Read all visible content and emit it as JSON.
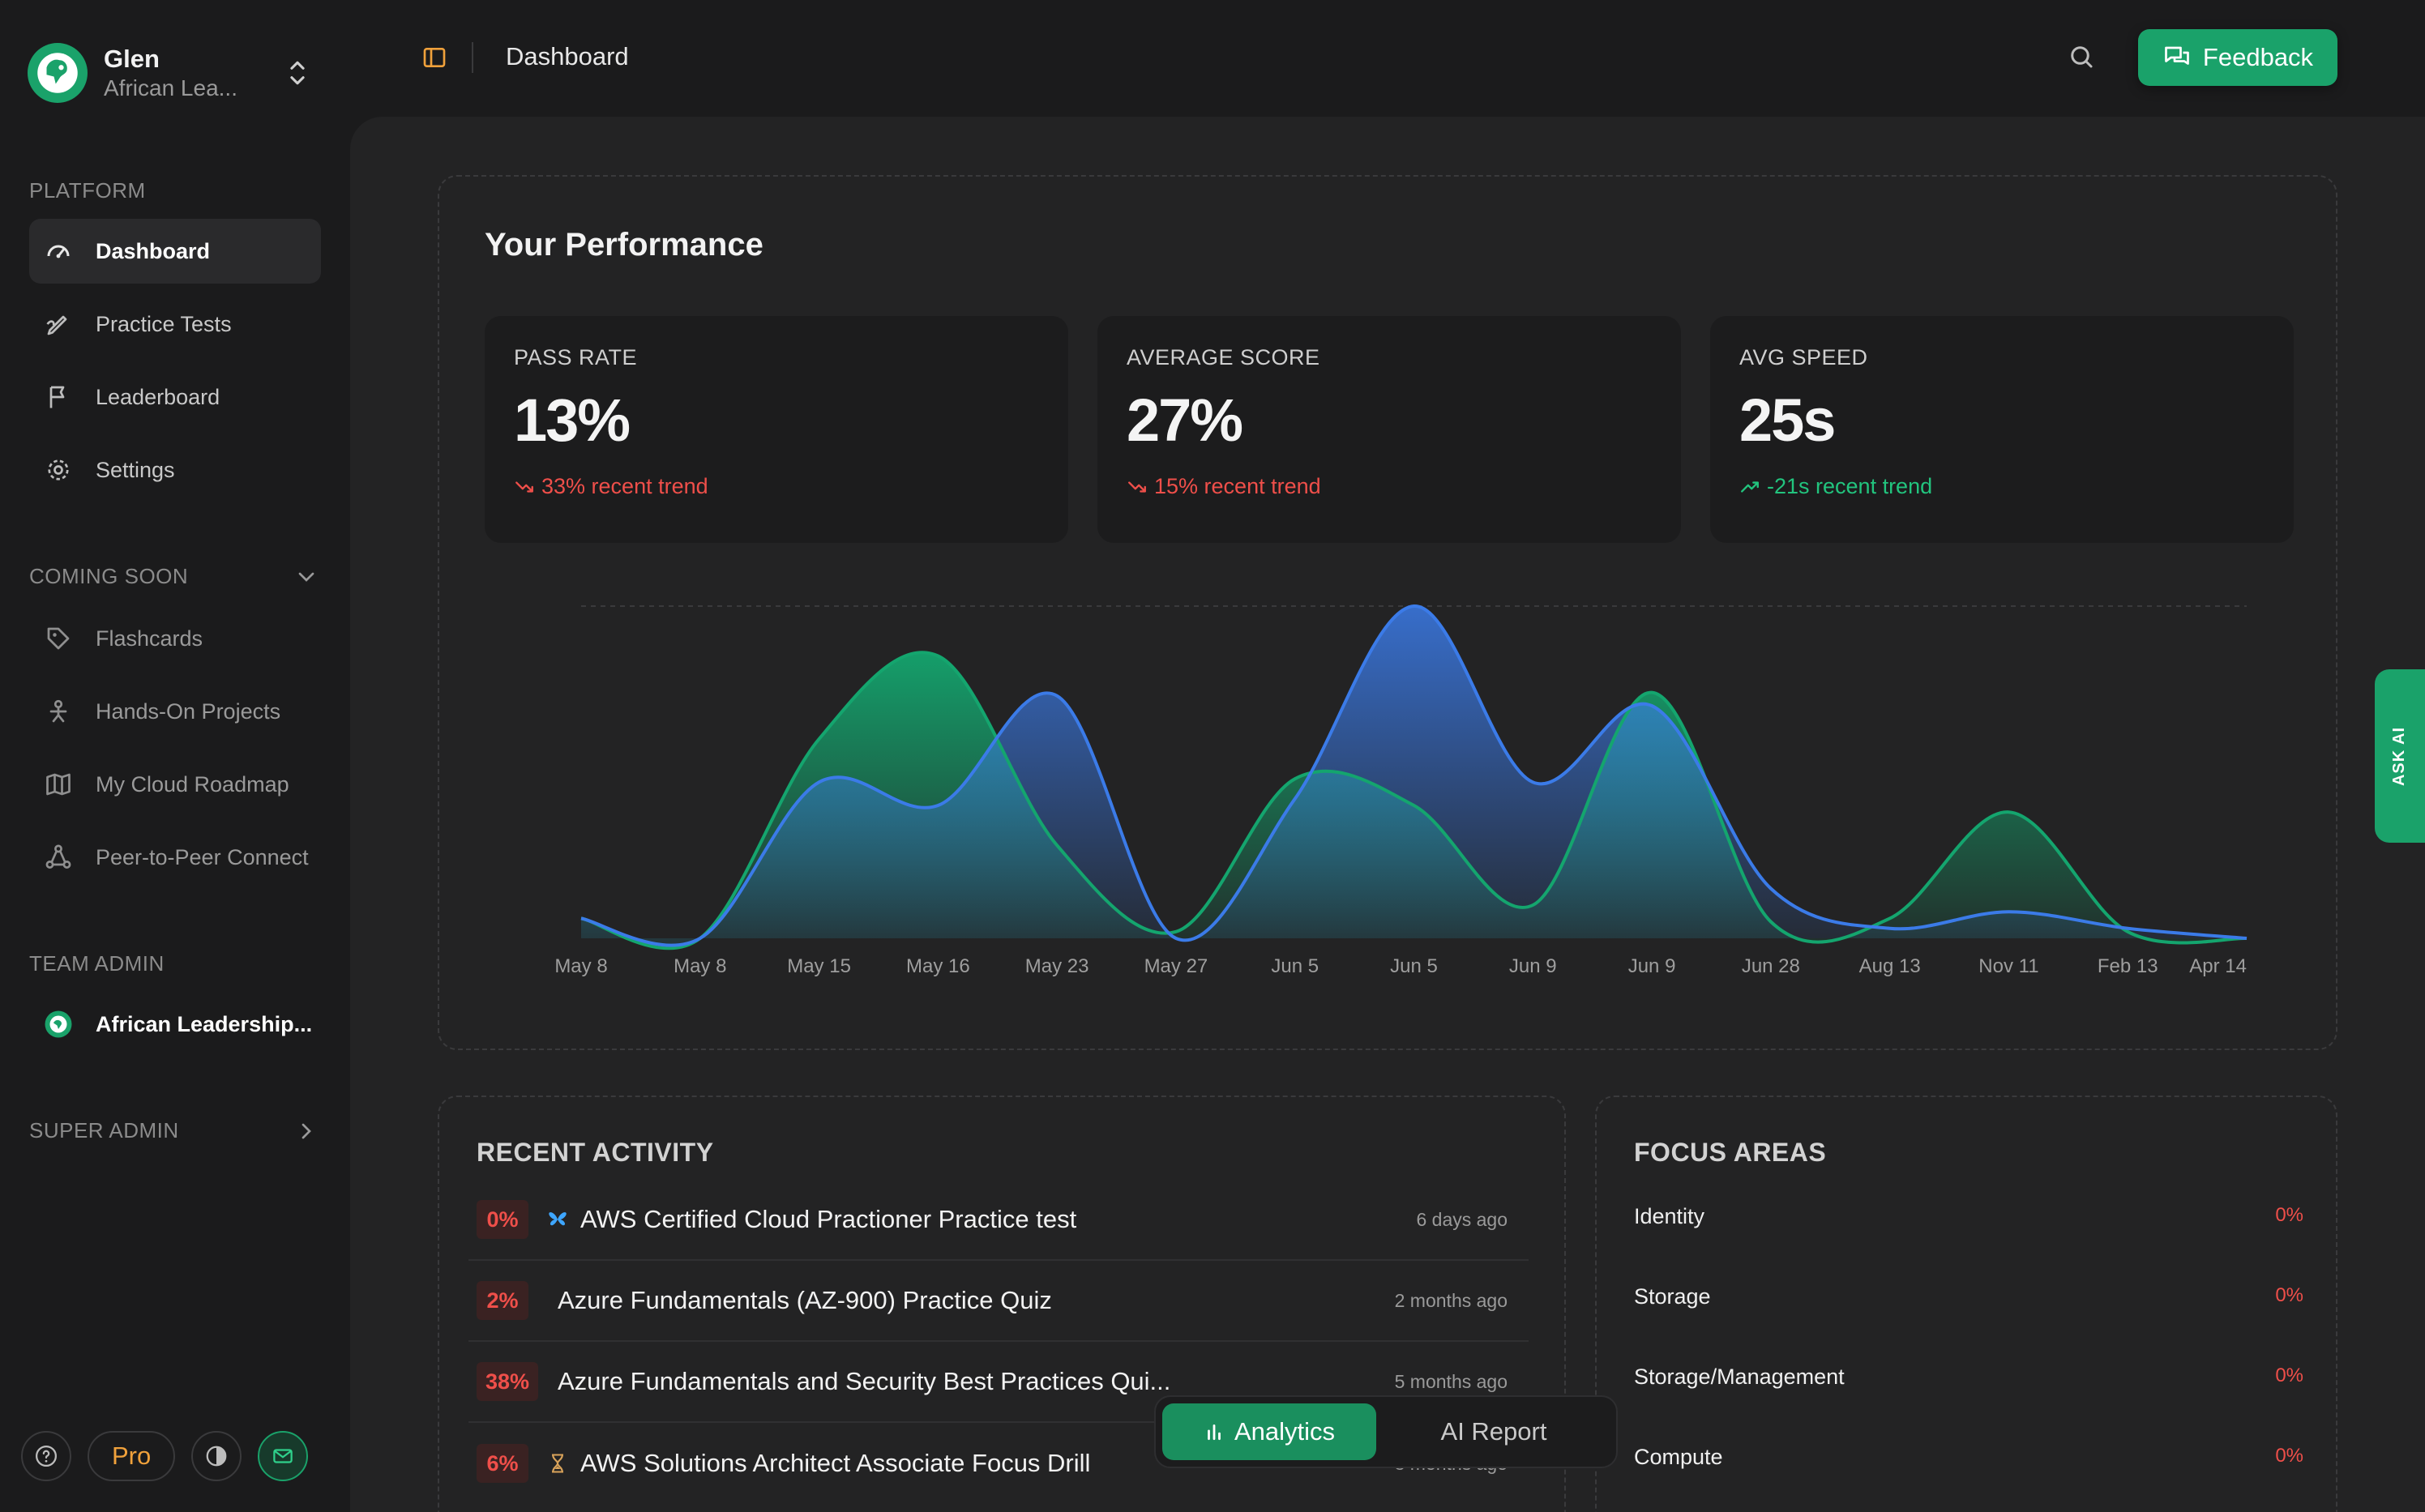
{
  "org": {
    "name": "Glen",
    "subtitle": "African Lea..."
  },
  "sidebar": {
    "platform_label": "PLATFORM",
    "platform_items": [
      {
        "label": "Dashboard",
        "icon": "gauge-icon"
      },
      {
        "label": "Practice Tests",
        "icon": "pen-icon"
      },
      {
        "label": "Leaderboard",
        "icon": "flag-icon"
      },
      {
        "label": "Settings",
        "icon": "gear-icon"
      }
    ],
    "coming_soon_label": "COMING SOON",
    "coming_soon_items": [
      {
        "label": "Flashcards",
        "icon": "tag-icon"
      },
      {
        "label": "Hands-On Projects",
        "icon": "person-icon"
      },
      {
        "label": "My Cloud Roadmap",
        "icon": "map-icon"
      },
      {
        "label": "Peer-to-Peer Connect",
        "icon": "network-icon"
      }
    ],
    "team_admin_label": "TEAM ADMIN",
    "team_item": "African Leadership...",
    "super_admin_label": "SUPER ADMIN",
    "pro_label": "Pro"
  },
  "topbar": {
    "title": "Dashboard",
    "feedback_label": "Feedback"
  },
  "performance": {
    "title": "Your Performance",
    "stats": [
      {
        "label": "PASS RATE",
        "value": "13%",
        "trend": "33% recent trend",
        "direction": "down"
      },
      {
        "label": "AVERAGE SCORE",
        "value": "27%",
        "trend": "15% recent trend",
        "direction": "down"
      },
      {
        "label": "AVG SPEED",
        "value": "25s",
        "trend": "-21s recent trend",
        "direction": "up"
      }
    ]
  },
  "chart_data": {
    "type": "area",
    "categories": [
      "May 8",
      "May 8",
      "May 15",
      "May 16",
      "May 23",
      "May 27",
      "Jun 5",
      "Jun 5",
      "Jun 9",
      "Jun 9",
      "Jun 28",
      "Aug 13",
      "Nov 11",
      "Feb 13",
      "Apr 14"
    ],
    "series": [
      {
        "color": "#14a56e",
        "values": [
          6,
          0,
          60,
          85,
          28,
          2,
          48,
          40,
          10,
          74,
          5,
          6,
          38,
          2,
          0
        ]
      },
      {
        "color": "#3b7be8",
        "values": [
          6,
          0,
          47,
          40,
          73,
          0,
          42,
          100,
          47,
          70,
          15,
          3,
          8,
          3,
          0
        ]
      }
    ],
    "ylim": [
      0,
      100
    ],
    "grid": false,
    "legend": "none"
  },
  "recent_activity": {
    "title": "RECENT ACTIVITY",
    "items": [
      {
        "score": "0%",
        "title": "AWS Certified Cloud Practioner Practice test",
        "time": "6 days ago",
        "icon": "butterfly-icon"
      },
      {
        "score": "2%",
        "title": "Azure Fundamentals (AZ-900) Practice Quiz",
        "time": "2 months ago",
        "icon": ""
      },
      {
        "score": "38%",
        "title": "Azure Fundamentals and Security Best Practices Qui...",
        "time": "5 months ago",
        "icon": ""
      },
      {
        "score": "6%",
        "title": "AWS Solutions Architect Associate Focus Drill",
        "time": "8 months ago",
        "icon": "hourglass-icon"
      }
    ]
  },
  "focus_areas": {
    "title": "FOCUS AREAS",
    "items": [
      {
        "name": "Identity",
        "pct": "0%"
      },
      {
        "name": "Storage",
        "pct": "0%"
      },
      {
        "name": "Storage/Management",
        "pct": "0%"
      },
      {
        "name": "Compute",
        "pct": "0%"
      }
    ]
  },
  "mode_toggle": {
    "analytics": "Analytics",
    "ai_report": "AI Report"
  },
  "ask_ai": "ASK AI",
  "colors": {
    "accent": "#1aa26a",
    "danger": "#ef4f4a",
    "success": "#22c47e",
    "warning": "#f0a13b"
  }
}
